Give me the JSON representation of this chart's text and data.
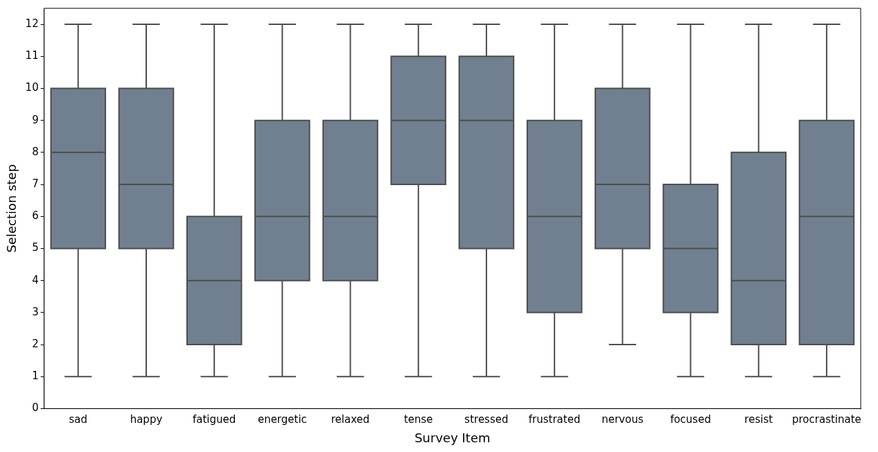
{
  "chart_data": {
    "type": "box",
    "xlabel": "Survey Item",
    "ylabel": "Selection step",
    "categories": [
      "sad",
      "happy",
      "fatigued",
      "energetic",
      "relaxed",
      "tense",
      "stressed",
      "frustrated",
      "nervous",
      "focused",
      "resist",
      "procrastinate"
    ],
    "color": "#708090",
    "ylim": [
      0,
      12.5
    ],
    "yticks": [
      0,
      1,
      2,
      3,
      4,
      5,
      6,
      7,
      8,
      9,
      10,
      11,
      12
    ],
    "grid": false,
    "legend": false,
    "boxes": [
      {
        "low": 1,
        "q1": 5,
        "median": 8,
        "q3": 10,
        "high": 12
      },
      {
        "low": 1,
        "q1": 5,
        "median": 7,
        "q3": 10,
        "high": 12
      },
      {
        "low": 1,
        "q1": 2,
        "median": 4,
        "q3": 6,
        "high": 12
      },
      {
        "low": 1,
        "q1": 4,
        "median": 6,
        "q3": 9,
        "high": 12
      },
      {
        "low": 1,
        "q1": 4,
        "median": 6,
        "q3": 9,
        "high": 12
      },
      {
        "low": 1,
        "q1": 7,
        "median": 9,
        "q3": 11,
        "high": 12
      },
      {
        "low": 1,
        "q1": 5,
        "median": 9,
        "q3": 11,
        "high": 12
      },
      {
        "low": 1,
        "q1": 3,
        "median": 6,
        "q3": 9,
        "high": 12
      },
      {
        "low": 2,
        "q1": 5,
        "median": 7,
        "q3": 10,
        "high": 12
      },
      {
        "low": 1,
        "q1": 3,
        "median": 5,
        "q3": 7,
        "high": 12
      },
      {
        "low": 1,
        "q1": 2,
        "median": 4,
        "q3": 8,
        "high": 12
      },
      {
        "low": 1,
        "q1": 2,
        "median": 6,
        "q3": 9,
        "high": 12
      }
    ]
  }
}
